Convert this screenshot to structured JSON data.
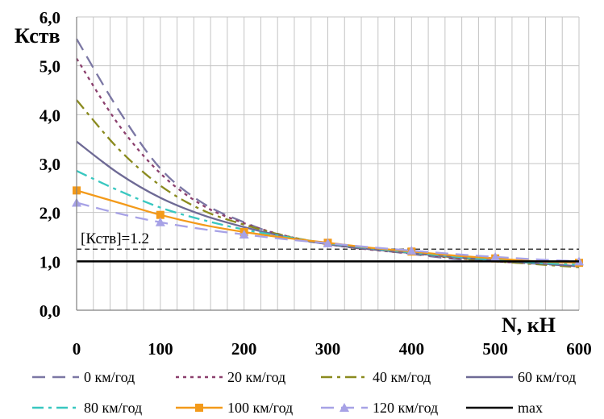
{
  "chart_data": {
    "type": "line",
    "title": "",
    "xlabel": "N, кН",
    "ylabel": "Кств",
    "xlim": [
      0,
      600
    ],
    "ylim": [
      0,
      6
    ],
    "grid": true,
    "x_ticks": [
      0,
      100,
      200,
      300,
      400,
      500,
      600
    ],
    "x_tick_labels": [
      "0",
      "100",
      "200",
      "300",
      "400",
      "500",
      "600"
    ],
    "y_ticks": [
      0,
      1,
      2,
      3,
      4,
      5,
      6
    ],
    "y_tick_labels": [
      "0,0",
      "1,0",
      "2,0",
      "3,0",
      "4,0",
      "5,0",
      "6,0"
    ],
    "annotation": {
      "text": "[Кств]=1.2",
      "value": 1.25
    },
    "legend_position": "bottom",
    "series": [
      {
        "name": "0 км/год",
        "color": "#7b77a4",
        "dash": "16,9",
        "marker": "none",
        "x": [
          0,
          50,
          100,
          150,
          200,
          250,
          300,
          350,
          400,
          450,
          500,
          550,
          600
        ],
        "y": [
          5.55,
          4.1,
          2.9,
          2.2,
          1.8,
          1.5,
          1.35,
          1.25,
          1.15,
          1.05,
          1.0,
          0.95,
          0.9
        ]
      },
      {
        "name": "20 км/год",
        "color": "#8b3f6d",
        "dash": "4,5",
        "marker": "none",
        "x": [
          0,
          50,
          100,
          150,
          200,
          250,
          300,
          350,
          400,
          450,
          500,
          550,
          600
        ],
        "y": [
          5.15,
          3.8,
          2.8,
          2.15,
          1.78,
          1.52,
          1.35,
          1.24,
          1.16,
          1.07,
          1.0,
          0.95,
          0.9
        ]
      },
      {
        "name": "40 км/год",
        "color": "#8a8a1e",
        "dash": "14,6,4,6",
        "marker": "none",
        "x": [
          0,
          50,
          100,
          150,
          200,
          250,
          300,
          350,
          400,
          450,
          500,
          550,
          600
        ],
        "y": [
          4.3,
          3.3,
          2.55,
          2.05,
          1.75,
          1.52,
          1.36,
          1.25,
          1.17,
          1.08,
          1.0,
          0.94,
          0.88
        ]
      },
      {
        "name": "60 км/год",
        "color": "#6e6a95",
        "dash": "",
        "marker": "none",
        "x": [
          0,
          50,
          100,
          150,
          200,
          250,
          300,
          350,
          400,
          450,
          500,
          550,
          600
        ],
        "y": [
          3.45,
          2.8,
          2.3,
          1.95,
          1.7,
          1.5,
          1.35,
          1.25,
          1.17,
          1.09,
          1.02,
          0.96,
          0.9
        ]
      },
      {
        "name": "80 км/год",
        "color": "#38c7c0",
        "dash": "14,6,4,6",
        "marker": "none",
        "x": [
          0,
          50,
          100,
          150,
          200,
          250,
          300,
          350,
          400,
          450,
          500,
          550,
          600
        ],
        "y": [
          2.85,
          2.45,
          2.1,
          1.85,
          1.65,
          1.5,
          1.37,
          1.27,
          1.18,
          1.1,
          1.03,
          0.97,
          0.93
        ]
      },
      {
        "name": "100 км/год",
        "color": "#f39a1a",
        "dash": "",
        "marker": "square",
        "x": [
          0,
          50,
          100,
          150,
          200,
          250,
          300,
          350,
          400,
          450,
          500,
          550,
          600
        ],
        "y": [
          2.45,
          2.2,
          1.95,
          1.75,
          1.6,
          1.48,
          1.38,
          1.28,
          1.2,
          1.12,
          1.06,
          1.0,
          0.97
        ]
      },
      {
        "name": "120 км/год",
        "color": "#a7a2e6",
        "dash": "16,9",
        "marker": "triangle",
        "x": [
          0,
          50,
          100,
          150,
          200,
          250,
          300,
          350,
          400,
          450,
          500,
          550,
          600
        ],
        "y": [
          2.2,
          1.98,
          1.8,
          1.66,
          1.55,
          1.45,
          1.37,
          1.29,
          1.22,
          1.15,
          1.09,
          1.04,
          1.0
        ]
      },
      {
        "name": "max",
        "color": "#000000",
        "dash": "",
        "marker": "none",
        "x": [
          0,
          600
        ],
        "y": [
          1.0,
          1.0
        ]
      }
    ]
  }
}
